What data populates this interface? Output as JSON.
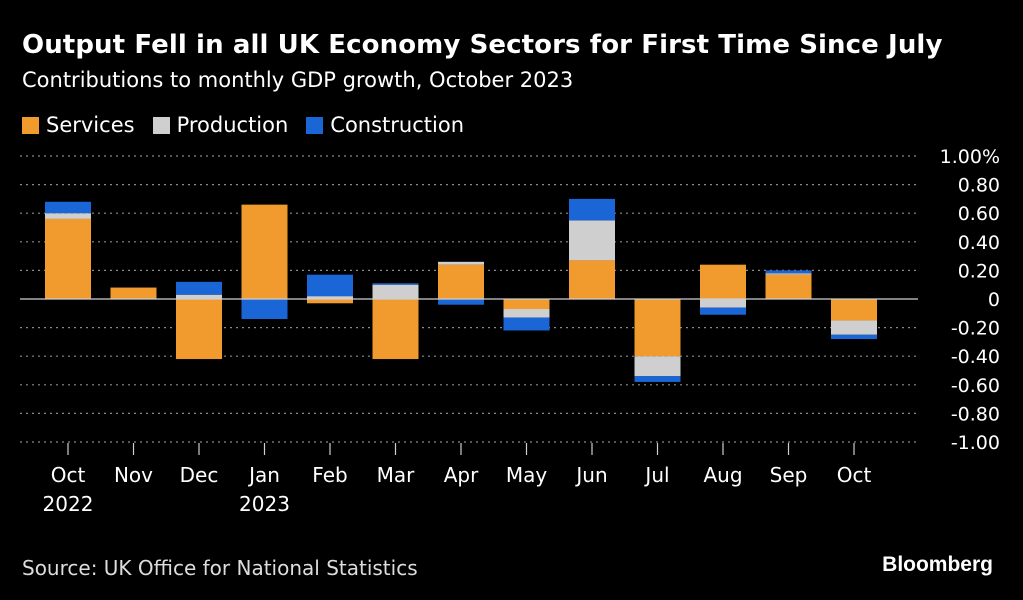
{
  "header": {
    "title": "Output Fell in all UK Economy Sectors for First Time Since July",
    "subtitle": "Contributions to monthly GDP growth, October 2023"
  },
  "legend": [
    {
      "label": "Services",
      "color": "#F19A2D"
    },
    {
      "label": "Production",
      "color": "#CFCFCF"
    },
    {
      "label": "Construction",
      "color": "#1A66D6"
    }
  ],
  "chart_data": {
    "type": "bar",
    "stacked": true,
    "title": "Output Fell in all UK Economy Sectors for First Time Since July",
    "subtitle": "Contributions to monthly GDP growth, October 2023",
    "categories": [
      "Oct 2022",
      "Nov",
      "Dec",
      "Jan 2023",
      "Feb",
      "Mar",
      "Apr",
      "May",
      "Jun",
      "Jul",
      "Aug",
      "Sep",
      "Oct"
    ],
    "category_labels": [
      [
        "Oct",
        "2022"
      ],
      [
        "Nov"
      ],
      [
        "Dec"
      ],
      [
        "Jan",
        "2023"
      ],
      [
        "Feb"
      ],
      [
        "Mar"
      ],
      [
        "Apr"
      ],
      [
        "May"
      ],
      [
        "Jun"
      ],
      [
        "Jul"
      ],
      [
        "Aug"
      ],
      [
        "Sep"
      ],
      [
        "Oct"
      ]
    ],
    "series": [
      {
        "name": "Services",
        "color": "#F19A2D",
        "values": [
          0.56,
          0.08,
          -0.42,
          0.66,
          -0.03,
          -0.42,
          0.24,
          -0.07,
          0.27,
          -0.4,
          0.24,
          0.17,
          -0.15
        ]
      },
      {
        "name": "Production",
        "color": "#CFCFCF",
        "values": [
          0.04,
          0.0,
          0.03,
          0.0,
          0.02,
          0.1,
          0.02,
          -0.06,
          0.28,
          -0.14,
          -0.06,
          0.01,
          -0.1
        ]
      },
      {
        "name": "Construction",
        "color": "#1A66D6",
        "values": [
          0.08,
          0.0,
          0.09,
          -0.14,
          0.15,
          0.01,
          -0.04,
          -0.09,
          0.15,
          -0.04,
          -0.05,
          0.02,
          -0.03
        ]
      }
    ],
    "yaxis": {
      "ylim": [
        -1.0,
        1.0
      ],
      "ticks": [
        1.0,
        0.8,
        0.6,
        0.4,
        0.2,
        0,
        -0.2,
        -0.4,
        -0.6,
        -0.8,
        -1.0
      ],
      "tick_labels": [
        "1.00%",
        "0.80",
        "0.60",
        "0.40",
        "0.20",
        "0",
        "-0.20",
        "-0.40",
        "-0.60",
        "-0.80",
        "-1.00"
      ]
    },
    "grid": true,
    "legend_position": "top-left"
  },
  "footer": {
    "source": "Source: UK Office for National Statistics",
    "brand": "Bloomberg"
  }
}
